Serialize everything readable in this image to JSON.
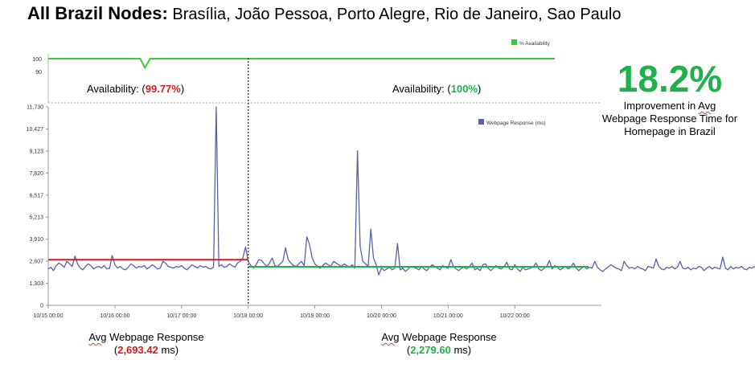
{
  "title": {
    "bold": "All Brazil Nodes:",
    "rest": "Brasília, João Pessoa, Porto Alegre, Rio de Janeiro, Sao Paulo"
  },
  "callout": {
    "value": "18.2%",
    "line1_pre": "Improvement in ",
    "line1_word": "Avg",
    "line2": "Webpage Response Time for",
    "line3": "Homepage in Brazil"
  },
  "availability": {
    "left": {
      "prefix": "Availability: (",
      "value": "99.77%",
      "suffix": ")"
    },
    "right": {
      "prefix": "Availability: (",
      "value": "100%",
      "suffix": ")"
    }
  },
  "averages": {
    "left": {
      "word": "Avg",
      "label": " Webpage Response",
      "open": "(",
      "value": "2,693.42",
      "unit": " ms)"
    },
    "right": {
      "word": "Avg",
      "label": " Webpage Response",
      "open": "(",
      "value": "2,279.60",
      "unit": " ms)"
    }
  },
  "colors": {
    "availability_line": "#3cc83c",
    "response_line": "#5a60a8",
    "avg_before": "#cc1f1f",
    "avg_after": "#1fb24a"
  },
  "chart_data": [
    {
      "type": "line",
      "legend": "% Availability",
      "legend_position": "top-right",
      "y_ticks": [
        "100",
        "90"
      ],
      "ylim": [
        85,
        100
      ],
      "x": [
        0,
        1.3,
        1.38,
        1.45,
        1.53,
        1.6,
        7.6
      ],
      "series": [
        {
          "name": "% Availability",
          "values": [
            100,
            100,
            100,
            93,
            100,
            100,
            100
          ]
        }
      ]
    },
    {
      "type": "line",
      "legend": "Webpage Response (ms)",
      "legend_position": "top-right",
      "x_ticks": [
        "10/15 00:00",
        "10/16 00:00",
        "10/17 00:00",
        "10/18 00:00",
        "10/19 00:00",
        "10/20 00:00",
        "10/21 00:00",
        "10/22 00:00"
      ],
      "y_ticks": [
        "0",
        "1,303",
        "2,607",
        "3,910",
        "5,213",
        "6,517",
        "7,820",
        "9,123",
        "10,427",
        "11,730"
      ],
      "ylim": [
        0,
        11730
      ],
      "xlim": [
        0,
        8.3
      ],
      "split_x": 3,
      "series": [
        {
          "name": "Webpage Response (ms)",
          "step": 0.04,
          "values": [
            2150,
            2250,
            2050,
            2350,
            2500,
            2400,
            2250,
            2600,
            2450,
            2300,
            2900,
            2450,
            2200,
            2100,
            2300,
            2450,
            2350,
            2150,
            2250,
            2300,
            2200,
            2350,
            2150,
            2200,
            2950,
            2400,
            2200,
            2300,
            2150,
            2100,
            2250,
            2450,
            2350,
            2200,
            2300,
            2250,
            2350,
            2150,
            2250,
            2400,
            2300,
            2150,
            2200,
            2600,
            2500,
            2300,
            2250,
            2200,
            2300,
            2250,
            2350,
            2200,
            2100,
            2250,
            2400,
            2300,
            2200,
            2350,
            2250,
            2300,
            2200,
            2150,
            2250,
            11730,
            2300,
            2400,
            2250,
            2300,
            2450,
            2350,
            2250,
            2500,
            2600,
            2800,
            3450,
            2600,
            2350,
            2200,
            2400,
            2700,
            2650,
            2450,
            2300,
            2500,
            2800,
            2350,
            2300,
            2450,
            2600,
            3400,
            2700,
            2500,
            2350,
            2300,
            2450,
            2600,
            2350,
            4050,
            3600,
            2800,
            2450,
            2300,
            2200,
            2350,
            2500,
            2400,
            2300,
            2600,
            2500,
            2400,
            2300,
            2450,
            2350,
            2250,
            2400,
            2200,
            9130,
            3500,
            2600,
            2450,
            2300,
            4500,
            2800,
            2400,
            1800,
            2200,
            2050,
            2150,
            2250,
            2100,
            2200,
            3650,
            2100,
            2200,
            2000,
            2150,
            2300,
            2250,
            2200,
            2100,
            2300,
            2150,
            2050,
            2250,
            2400,
            2300,
            2200,
            2100,
            2350,
            2250,
            2200,
            2700,
            2300,
            2150,
            2050,
            2200,
            2250,
            2150,
            2300,
            2500,
            2100,
            2200,
            2050,
            2400,
            2450,
            2200,
            2050,
            2200,
            2350,
            2200,
            2150,
            2300,
            2550,
            2150,
            2100,
            2400,
            2150,
            2000,
            2250,
            2100,
            2150,
            2200,
            2300,
            2500,
            2150,
            2050,
            2200,
            2300,
            2650,
            2150,
            2350,
            2250,
            2100,
            2200,
            2300,
            2150,
            2250,
            2500,
            2200,
            2050,
            2200,
            2300,
            2150,
            2250,
            2200,
            2600,
            2250,
            2100,
            2000,
            2150,
            2250,
            2400,
            2300,
            2200,
            2150,
            2050,
            2600,
            2350,
            2200,
            2250,
            2150,
            2300,
            2200,
            2150,
            2050,
            2300,
            2250,
            2200,
            2750,
            2300,
            2150,
            2100,
            2250,
            2200,
            2300,
            2150,
            2250,
            2600,
            2200,
            2150,
            2250,
            2100,
            2200,
            2150,
            2300,
            2250,
            2050,
            2200,
            2300,
            2150,
            2250,
            2200,
            2150,
            2850,
            2200,
            2100,
            2300,
            2150,
            2250,
            2200,
            2300,
            2150,
            2100,
            2250,
            2200,
            2300,
            2400,
            2250,
            2200,
            2150,
            2300,
            2250,
            2200,
            2150,
            2300,
            2500,
            2200,
            2150,
            2250,
            2200,
            2300,
            2250,
            2600,
            2400,
            2250,
            2550,
            2250,
            2300,
            2450
          ]
        }
      ],
      "averages": [
        {
          "value": 2693.42,
          "x_range": [
            0,
            3
          ]
        },
        {
          "value": 2279.6,
          "x_range": [
            3,
            7.6
          ]
        }
      ]
    }
  ]
}
